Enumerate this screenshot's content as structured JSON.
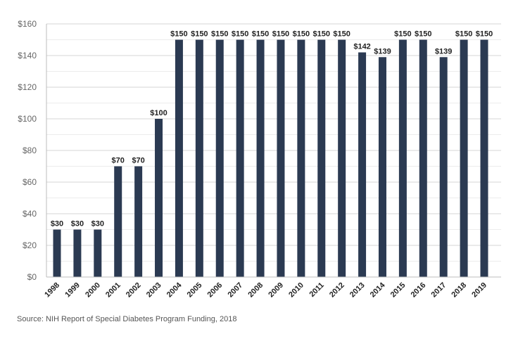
{
  "chart_data": {
    "type": "bar",
    "categories": [
      "1998",
      "1999",
      "2000",
      "2001",
      "2002",
      "2003",
      "2004",
      "2005",
      "2006",
      "2007",
      "2008",
      "2009",
      "2010",
      "2011",
      "2012",
      "2013",
      "2014",
      "2015",
      "2016",
      "2017",
      "2018",
      "2019"
    ],
    "values": [
      30,
      30,
      30,
      70,
      70,
      100,
      150,
      150,
      150,
      150,
      150,
      150,
      150,
      150,
      150,
      142,
      139,
      150,
      150,
      139,
      150,
      150
    ],
    "data_labels": [
      "$30",
      "$30",
      "$30",
      "$70",
      "$70",
      "$100",
      "$150",
      "$150",
      "$150",
      "$150",
      "$150",
      "$150",
      "$150",
      "$150",
      "$150",
      "$142",
      "$139",
      "$150",
      "$150",
      "$139",
      "$150",
      "$150"
    ],
    "title": "",
    "xlabel": "",
    "ylabel": "",
    "ylim": [
      0,
      160
    ],
    "yticks": [
      0,
      20,
      40,
      60,
      80,
      100,
      120,
      140,
      160
    ],
    "ytick_labels": [
      "$0",
      "$20",
      "$40",
      "$60",
      "$80",
      "$100",
      "$120",
      "$140",
      "$160"
    ],
    "grid": true,
    "bar_color": "#2b3a52"
  },
  "source_note": "Source:  NIH Report of Special Diabetes Program Funding, 2018"
}
